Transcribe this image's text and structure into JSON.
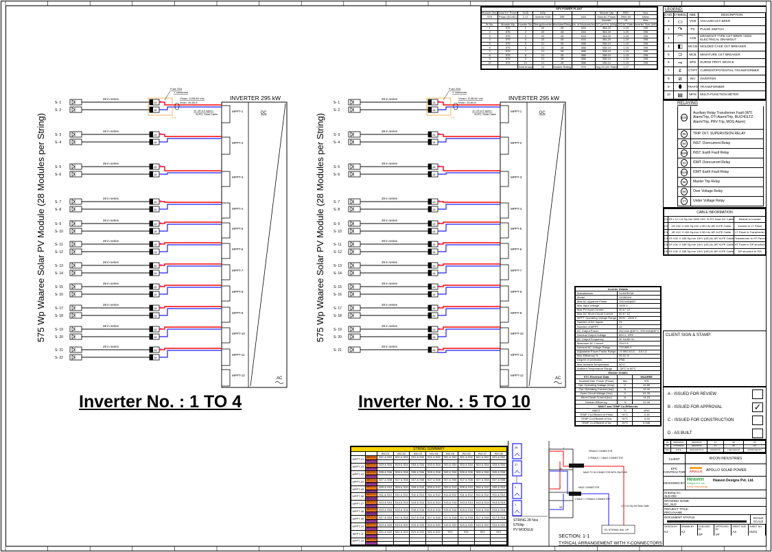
{
  "diagrams": [
    {
      "title": "Inverter No. : 1 TO 4",
      "vertical_label": "575 Wp Waaree Solar PV Module (28 Modules per String)",
      "inverter_title": "INVERTER 295 kW",
      "dc_label": "DC",
      "ac_label": "AC",
      "series_label": "28 in series",
      "fuse_label": "Fuse 25A",
      "yconn_label": "Y connector",
      "vmax": "Vmax= 1108.80 Vdc",
      "imax": "Imax= 26.84 A",
      "cable_label": "1C,1R,6.0 sqmm,",
      "cable_label2": "XLPO, Solar Cable",
      "y_label": "Y-1",
      "combiner_label": "28",
      "strings": [
        "S- 1",
        "S- 2",
        "S- 3",
        "S- 4",
        "S- 5",
        "S- 6",
        "S- 7",
        "S- 8",
        "S- 9",
        "S- 10",
        "S- 11",
        "S- 12",
        "S- 13",
        "S- 14",
        "S- 15",
        "S- 16",
        "S- 17",
        "S- 18",
        "S- 19",
        "S- 20",
        "S- 21",
        "S- 22"
      ],
      "mppts": [
        "MPPT-1",
        "MPPT-2",
        "MPPT-3",
        "MPPT-4",
        "MPPT-5",
        "MPPT-6",
        "MPPT-7",
        "MPPT-8",
        "MPPT-9",
        "MPPT-10",
        "MPPT-11",
        "MPPT-12"
      ]
    },
    {
      "title": "Inverter No. : 5 TO 10",
      "vertical_label": "575 Wp Waaree Solar PV Module (28 Modules per String)",
      "inverter_title": "INVERTER 295 kW",
      "dc_label": "DC",
      "ac_label": "AC",
      "series_label": "28 in series",
      "fuse_label": "Fuse 25A",
      "yconn_label": "Y connector",
      "vmax": "Vmax= 1108.80 Vdc",
      "imax": "Imax= 26.84 A",
      "cable_label": "1C,1R,6.0 sqmm,",
      "cable_label2": "XLPO, Solar Cable",
      "y_label": "Y-1",
      "combiner_label": "28",
      "strings": [
        "S- 1",
        "S- 2",
        "S- 3",
        "S- 4",
        "S- 5",
        "S- 6",
        "S- 7",
        "S- 8",
        "S- 9",
        "S- 10",
        "S- 11",
        "S- 12",
        "S- 13",
        "S- 14",
        "S- 15",
        "S- 16",
        "S- 17",
        "S- 18",
        "S- 19",
        "S- 20",
        "S- 21"
      ],
      "mppts": [
        "MPPT-1",
        "MPPT-2",
        "MPPT-3",
        "MPPT-4",
        "MPPT-5",
        "MPPT-6",
        "MPPT-7",
        "MPPT-8",
        "MPPT-9",
        "MPPT-10",
        "MPPT-11",
        "MPPT-12"
      ]
    }
  ],
  "plant_table": {
    "title": "SPV POWER PLANT",
    "summary": [
      [
        "Module (Wp)",
        "Total DC Power",
        "3445",
        "kWp",
        "",
        "",
        "Module Qty",
        "5992",
        "Nos"
      ],
      [
        "575",
        "Pmax (DC/AC)",
        "1.17",
        "Inverter KVA",
        "295",
        "616",
        "Total AC Power",
        "2950.00",
        "kWac"
      ]
    ],
    "columns": [
      "Sr No.",
      "Module Wp",
      "Inverter No.",
      "Strings/Inverter",
      "Modules/String",
      "No. of Modules/Inv",
      "DC per Inv (kWp)",
      "DC/AC Ratio",
      "Inverter Size (kW)"
    ],
    "inverter_row": [
      "",
      "",
      "",
      "",
      "",
      "",
      "Inverter",
      "10",
      "Nos"
    ],
    "rows": [
      [
        "1",
        "575",
        "1",
        "22",
        "28",
        "616",
        "354.20",
        "1.20",
        "295"
      ],
      [
        "2",
        "575",
        "2",
        "22",
        "28",
        "616",
        "354.20",
        "1.20",
        "295"
      ],
      [
        "3",
        "575",
        "3",
        "22",
        "28",
        "616",
        "354.20",
        "1.20",
        "295"
      ],
      [
        "4",
        "575",
        "4",
        "22",
        "28",
        "616",
        "354.20",
        "1.20",
        "295"
      ],
      [
        "5",
        "575",
        "5",
        "21",
        "28",
        "588",
        "338.10",
        "1.15",
        "295"
      ],
      [
        "6",
        "575",
        "6",
        "21",
        "28",
        "588",
        "338.10",
        "1.15",
        "295"
      ],
      [
        "7",
        "575",
        "7",
        "21",
        "28",
        "588",
        "338.10",
        "1.15",
        "295"
      ],
      [
        "8",
        "575",
        "8",
        "21",
        "28",
        "588",
        "338.10",
        "1.15",
        "295"
      ],
      [
        "9",
        "575",
        "9",
        "21",
        "28",
        "588",
        "338.10",
        "1.15",
        "295"
      ],
      [
        "10",
        "575",
        "10",
        "21",
        "28",
        "588",
        "338.10",
        "1.15",
        "295"
      ]
    ],
    "footer": [
      "",
      "",
      "Total Arrays",
      "10",
      "Module Rating",
      "575",
      "Avg DC/AC Ratio",
      "1.17",
      ""
    ]
  },
  "legend": {
    "title": "LEGEND:",
    "columns": [
      "S.NO.",
      "SYMBOL",
      "ABB.",
      "DESCRIPTION"
    ],
    "rows": [
      {
        "no": "1",
        "icon": "vacuum-breaker-icon",
        "abb": "VCB",
        "desc": "VACUUM CKT BRKR"
      },
      {
        "no": "2",
        "icon": "pulse-switch-icon",
        "abb": "PS",
        "desc": "PULSE SWITCH"
      },
      {
        "no": "3",
        "icon": "drawout-breaker-icon",
        "abb": "ACB",
        "desc": "DRAWOUT TYPE CKT BRKR / EDO-ELECTRICAL DRAWOUT"
      },
      {
        "no": "4",
        "icon": "mccb-icon",
        "abb": "MCCB",
        "desc": "MOLDED CASE CKT BREAKER"
      },
      {
        "no": "5",
        "icon": "mcb-icon",
        "abb": "MCB",
        "desc": "MINIATURE CKT BREAKER"
      },
      {
        "no": "6",
        "icon": "surge-device-icon",
        "abb": "SPD",
        "desc": "SURGE PROT. DEVICE"
      },
      {
        "no": "7",
        "icon": "ct-pt-icon",
        "abb": "CT/PT",
        "desc": "CURRENT/POTENTIAL TRANSFORMER"
      },
      {
        "no": "8",
        "icon": "inverter-icon",
        "abb": "INV",
        "desc": "INVERTER"
      },
      {
        "no": "9",
        "icon": "transformer-icon",
        "abb": "TRAFO",
        "desc": "TRANSFORMER"
      },
      {
        "no": "10",
        "icon": "meter-icon",
        "abb": "MFM",
        "desc": "MULTI-FUNCTION METER"
      }
    ]
  },
  "relaying": {
    "title": "RELAYING",
    "rows": [
      {
        "code": "63X",
        "desc": "Auxiliary Relay Transformer Fault (WTI Alarm/Trip, OTI Alarm/Trip, BUCHOLTZ-Alarm/Trip, PRV-Trip, MOG Alarm)"
      },
      {
        "code": "95",
        "desc": "TRIP CKT. SUPERVISION RELAY"
      },
      {
        "code": "50",
        "desc": "INST. Overcurrent Relay"
      },
      {
        "code": "50N",
        "desc": "INST. Earth Fault Relay"
      },
      {
        "code": "51",
        "desc": "IDMT Overcurrent Relay"
      },
      {
        "code": "51N",
        "desc": "IDMT Earth Fault Relay"
      },
      {
        "code": "86",
        "desc": "Master Trip Relay"
      },
      {
        "code": "59",
        "desc": "Over Voltage Relay"
      },
      {
        "code": "27",
        "desc": "Under Voltage Relay"
      }
    ]
  },
  "cable_info": {
    "title": "CABLE INFORMATION",
    "rows": [
      [
        "C1",
        "1R x 1C x 6 Sq.mm 1800 VDC XLPO Solar DC Cable",
        "Module to Inverter"
      ],
      [
        "C2",
        "1R X3C X 400 Sq.mm 1.9KV AL AR XLPE Cable",
        "Inverter to LT Panel"
      ],
      [
        "C3",
        "4R X1C X 400 Sq.mm 1.9KV AL AR XLPE Cable",
        "LT Panel to Transformer"
      ],
      [
        "C4",
        "1R X3C X 185 Sq.mm 11KV (UE) AL AR XLPE Cable",
        "Transformer to HT Panel"
      ],
      [
        "C5",
        "1R X3C X 185 Sq.mm 11KV (UE) AL AR XLPE Cable",
        "HT Panel to DP structure"
      ],
      [
        "C6",
        "1R X3C X 185 Sq.mm 11KV (UE) AL AR XLPE Cable",
        "DP structure to S/S"
      ]
    ]
  },
  "inverter_details": {
    "title": "Inverter Details",
    "rows": [
      [
        "Manufacturer",
        "SUNGROW"
      ],
      [
        "Model",
        "SG350HX"
      ],
      [
        "Max AC Apparent Power",
        "295 kVA@50°"
      ],
      [
        "Max Input Voltage",
        "1500 V"
      ],
      [
        "Max PV Input Current",
        "40 A * 12"
      ],
      [
        "Max DC Short Circuit Current",
        "60 A * 12"
      ],
      [
        "MPPT Operating Voltage Range",
        "500V - 1500 V"
      ],
      [
        "Number of DC Inputs",
        "24"
      ],
      [
        "Number of MPPT",
        "12"
      ],
      [
        "AC Output Power",
        "352 kVA @30°C, 295 kVA@50°C"
      ],
      [
        "Nominal Output Voltage",
        "800 V, 3/PE"
      ],
      [
        "AC Output Frequency",
        "50 Hz/60 Hz"
      ],
      [
        "Maximum AC Current",
        "254.0 A"
      ],
      [
        "Nominal AC Voltage Range",
        "720-880 V"
      ],
      [
        "Adjustable Power Factor Range",
        ">0.99/0.8 LD ... 0.8 LG"
      ],
      [
        "Max Efficiency %",
        "99.01 %"
      ],
      [
        "Degree of protection",
        "IP66"
      ],
      [
        "Max Ambient Temperature",
        "60°C"
      ],
      [
        "Ambient Temperature Range",
        "-30°C to 60°C"
      ]
    ],
    "module_title": "Module Details",
    "module_header": [
      "STC Electrical Data",
      "",
      "WAAREE"
    ],
    "module_rows": [
      [
        "Nominal Max. Power (Pmax)",
        "Wp",
        "575"
      ],
      [
        "Opt. Operating Voltage (Vmp)",
        "V",
        "42.85"
      ],
      [
        "Opt. Operating Current (Imp)",
        "A",
        "13.42"
      ],
      [
        "Open Circuit Voltage (Voc)",
        "V",
        "51.26"
      ],
      [
        "Short Circuit Current (Isc)",
        "A",
        "14.23"
      ],
      [
        "Module Efficiency",
        "%",
        "22.26"
      ]
    ],
    "nmot_title": "NMOT and TEMP Co-Efficients",
    "nmot_rows": [
      [
        "NMOT",
        "°C",
        "43±2"
      ],
      [
        "TEMP Co-Efficient of Pmax",
        "%/°C",
        "-0.30"
      ],
      [
        "TEMP Co-Efficient of Voc",
        "%/°C",
        "-0.26"
      ],
      [
        "TEMP Co-Efficient of Isc",
        "%/°C",
        "0.046"
      ]
    ]
  },
  "string_summary": {
    "title": "STRING SUMMARY",
    "columns": [
      "INV-01",
      "INV-02",
      "INV-03",
      "INV-04",
      "INV-05",
      "INV-06",
      "INV-07",
      "INV-08"
    ],
    "input_labels": [
      "INPUT-01",
      "INPUT-02"
    ],
    "colors": {
      "header": "#f5d400",
      "input1": "#f07820",
      "input2": "#a040a0"
    },
    "rows": [
      {
        "mppt": "MPPT-01",
        "values": [
          "S01 & S02",
          "S01 & S02",
          "S01 & S02",
          "S01 & S02",
          "S01 & S02",
          "S01 & S02",
          "S01 & S02",
          "S01 & S02"
        ]
      },
      {
        "mppt": "MPPT-02",
        "values": [
          "S03 & S04",
          "S03 & S04",
          "S03 & S04",
          "S03 & S04",
          "S03 & S04",
          "S03 & S04",
          "S03 & S04",
          "S03 & S04"
        ]
      },
      {
        "mppt": "MPPT-03",
        "values": [
          "S05 & S06",
          "S05 & S06",
          "S05 & S06",
          "S05 & S06",
          "S05 & S06",
          "S05 & S06",
          "S05 & S06",
          "S05 & S06"
        ]
      },
      {
        "mppt": "MPPT-04",
        "values": [
          "S07 & S08",
          "S07 & S08",
          "S07 & S08",
          "S07 & S08",
          "S07 & S08",
          "S07 & S08",
          "S07 & S08",
          "S07 & S08"
        ]
      },
      {
        "mppt": "MPPT-05",
        "values": [
          "S09 & S10",
          "S09 & S10",
          "S09 & S10",
          "S09 & S10",
          "S09 & S10",
          "S09 & S10",
          "S09 & S10",
          "S09 & S10"
        ]
      },
      {
        "mppt": "MPPT-06",
        "values": [
          "S11 & S12",
          "S11 & S12",
          "S11 & S12",
          "S11 & S12",
          "S11 & S12",
          "S11 & S12",
          "S11 & S12",
          "S11 & S12"
        ]
      },
      {
        "mppt": "MPPT-07",
        "values": [
          "S13 & S14",
          "S13 & S14",
          "S13 & S14",
          "S13 & S14",
          "S13 & S14",
          "S13 & S14",
          "S13 & S14",
          "S13 & S14"
        ]
      },
      {
        "mppt": "MPPT-08",
        "values": [
          "S15 & S16",
          "S15 & S16",
          "S15 & S16",
          "S15 & S16",
          "S15 & S16",
          "S15 & S16",
          "S15 & S16",
          "S15 & S16"
        ]
      },
      {
        "mppt": "MPPT-09",
        "values": [
          "S17 & S18",
          "S17 & S18",
          "S17 & S18",
          "S17 & S18",
          "S17 & S18",
          "S17 & S18",
          "S17 & S18",
          "S17 & S18"
        ]
      },
      {
        "mppt": "MPPT-10",
        "values": [
          "S19 & S20",
          "S19 & S20",
          "S19 & S20",
          "S19 & S20",
          "S19 & S20",
          "S19 & S20",
          "S19 & S20",
          "S19 & S20"
        ]
      },
      {
        "mppt": "MPPT-11",
        "values": [
          "S21 & S22",
          "S21 & S22",
          "S21 & S22",
          "S21 & S22",
          "S21",
          "S21",
          "S21",
          "S21"
        ]
      },
      {
        "mppt": "MPPT-12",
        "values": [
          "",
          "",
          "",
          "",
          "",
          "",
          "",
          ""
        ]
      }
    ]
  },
  "section": {
    "title": "SECTION: 1-1",
    "subtitle": "TYPICAL ARRANGEMENT WITH Y-CONNECTORS",
    "modules": [
      "28",
      "27",
      "2",
      "1"
    ],
    "string_caption": "STRING 28 Nos",
    "module_caption": "575Wp",
    "module_caption2": "PV MODULE",
    "wire_labels": [
      "1",
      "28",
      "1",
      "28"
    ],
    "notes": [
      "FEMALE CONNECTOR",
      "2 FEMALE / 1 MALE CONNECTOR",
      "MALE PV IN CONNECTOR WITH 25A FUSE",
      "MALE CONNECTOR",
      "2 MALE / 1 FEMALE CONNECTOR",
      "1C X 6.0 Sq.mm Solar Cable"
    ],
    "dest": "TO STRING INV. I/P"
  },
  "client_sign": "CLIENT SIGN & STAMP:",
  "status": [
    {
      "label": "A  -  ISSUED FOR REVIEW",
      "checked": false
    },
    {
      "label": "B  -  ISSUED FOR APPROVAL",
      "checked": true
    },
    {
      "label": "C  -  ISSUED FOR CONSTRUCTION",
      "checked": false
    },
    {
      "label": "D  -  AS BUILT",
      "checked": false
    }
  ],
  "revisions": [
    [
      "R1",
      "28/04/2024",
      "REVISION",
      "KJ",
      "SP",
      "VP"
    ],
    [
      "R0",
      "27/03/2024",
      "REVISION",
      "KJ",
      "SP",
      "VP"
    ],
    [
      "REV",
      "DATE",
      "DESCRIPTION",
      "DRAWN BY",
      "CHECKED BY",
      "APPROVED BY"
    ]
  ],
  "title_block": {
    "client_label": "CLIENT",
    "client": "RICON INDUSTRIES",
    "epc_label": "EPC CONTRACTOR",
    "epc": "APOLLO SOLAR POWER",
    "epc_logo": "APOLLO",
    "designer_label": "DESIGNED BY",
    "designer_logo": "Heaven",
    "designer_logo_sub": "Designs Pvt. Ltd.",
    "designer_tagline": "Keep Innovating!",
    "designer": "Heaven Designs Pvt. Ltd.",
    "drawing_no_label": "Drawing no.:",
    "drawing_no": "SLD-002",
    "drawing_name_label": "DRAWING NAME:",
    "drawing_name": "DC_SLD",
    "project_label": "PROJECT TITLE:",
    "project": "PROJ.NAME",
    "doc_status_label": "DOCUMENT STATUS:",
    "scale_label": "SCALE",
    "scale": "SCALE",
    "footer": [
      [
        "DESIGN BY",
        "KJ"
      ],
      [
        "DRAWN BY",
        "KJ"
      ],
      [
        "CHECKED BY",
        "SP"
      ],
      [
        "APPROVED BY",
        "VP"
      ],
      [
        "SHEET SIZE",
        "A3"
      ],
      [
        "SHEET NO.",
        "01/01"
      ]
    ]
  },
  "colors": {
    "positive": "#ff0000",
    "negative": "#1a1aff",
    "yconnector_box": "#f0a030"
  }
}
